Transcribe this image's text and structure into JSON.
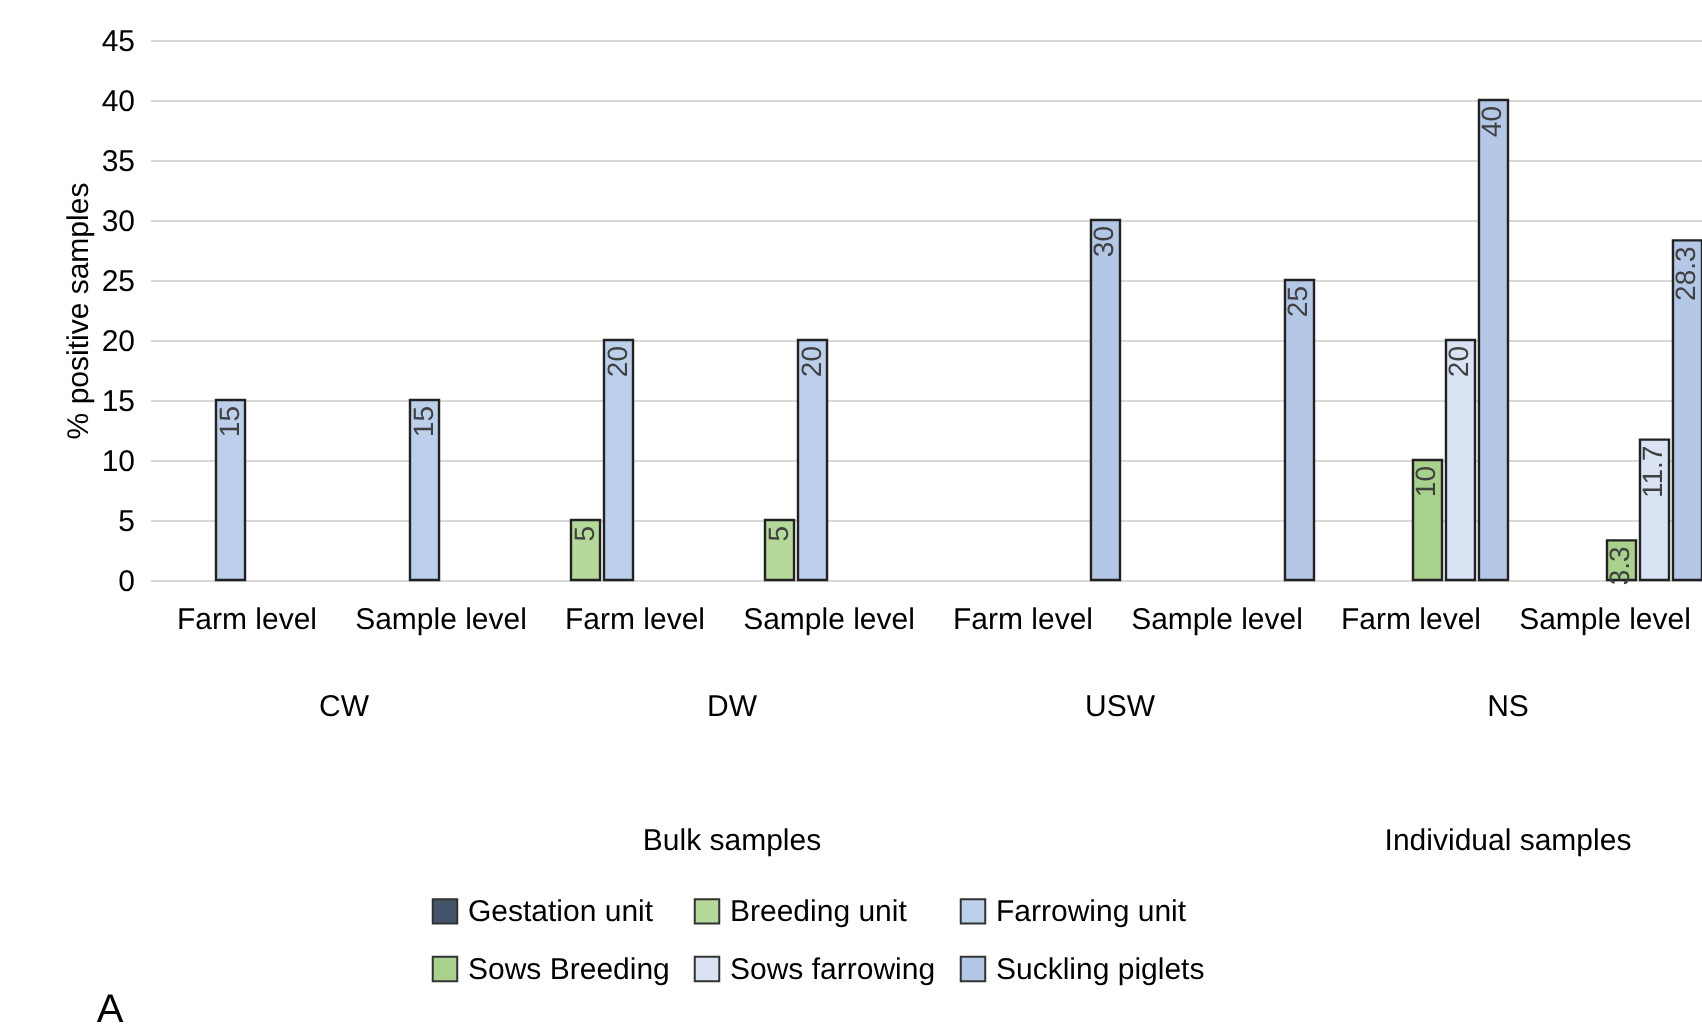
{
  "chart_data": {
    "type": "bar",
    "ylabel": "% positive samples",
    "categories": [
      "Farm level",
      "Sample level",
      "Farm level",
      "Sample level",
      "Farm level",
      "Sample level",
      "Farm level",
      "Sample level"
    ],
    "series": [
      {
        "name": "Gestation unit",
        "color": "#44546a",
        "values": [
          null,
          null,
          null,
          null,
          null,
          null,
          null,
          null
        ]
      },
      {
        "name": "Breeding unit",
        "color": "#b5d99b",
        "values": [
          null,
          null,
          5,
          5,
          null,
          null,
          null,
          null
        ]
      },
      {
        "name": "Farrowing unit",
        "color": "#bccfeb",
        "values": [
          15,
          15,
          20,
          20,
          null,
          null,
          null,
          null
        ]
      },
      {
        "name": "Sows Breeding",
        "color": "#a9d18e",
        "values": [
          null,
          null,
          null,
          null,
          null,
          null,
          10,
          3.3
        ]
      },
      {
        "name": "Sows farrowing",
        "color": "#dae3f3",
        "values": [
          null,
          null,
          null,
          null,
          null,
          null,
          20,
          11.7
        ]
      },
      {
        "name": "Suckling piglets",
        "color": "#b4c7e7",
        "values": [
          null,
          null,
          null,
          null,
          30,
          25,
          40,
          28.3
        ]
      }
    ],
    "ylim": [
      0,
      45
    ],
    "yticks": [
      0,
      5,
      10,
      15,
      20,
      25,
      30,
      35,
      40,
      45
    ],
    "grid": "y",
    "legend": "bottom",
    "data_labels": true,
    "annotations": [
      "CW",
      "DW",
      "USW",
      "NS",
      "Bulk samples",
      "Individual samples",
      "A"
    ]
  }
}
